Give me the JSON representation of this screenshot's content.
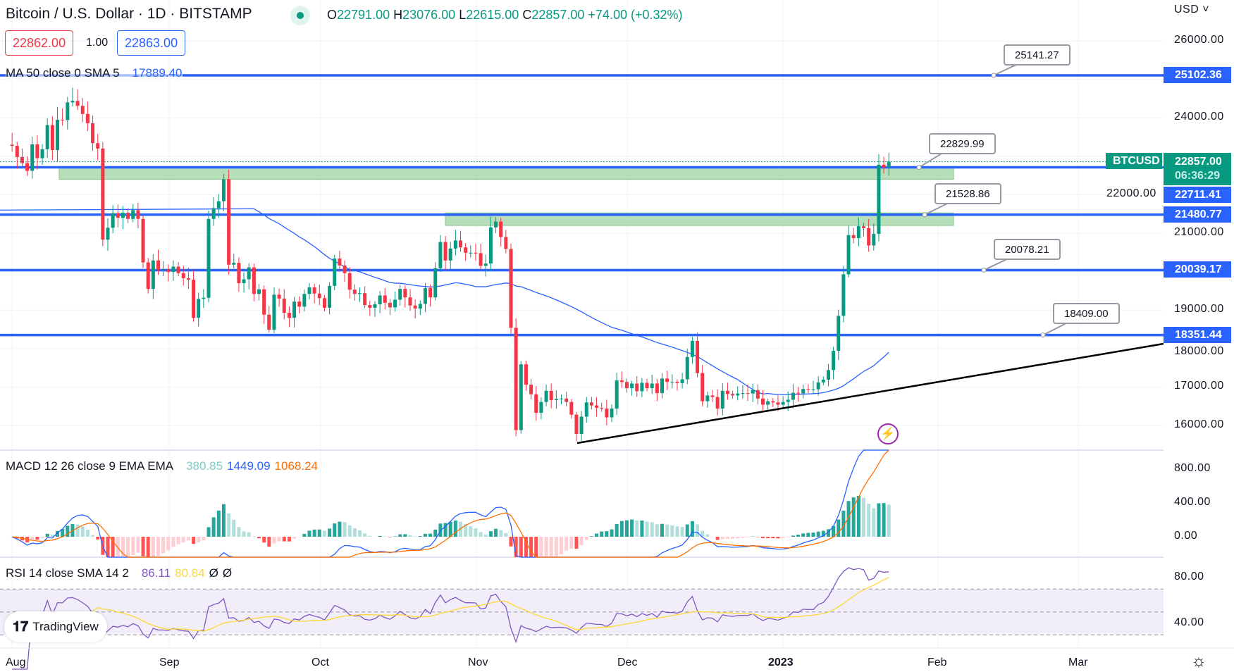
{
  "header": {
    "title": "Bitcoin / U.S. Dollar · 1D · BITSTAMP",
    "open_label": "O",
    "open": "22791.00",
    "high_label": "H",
    "high": "23076.00",
    "low_label": "L",
    "low": "22615.00",
    "close_label": "C",
    "close": "22857.00",
    "change": "+74.00 (+0.32%)"
  },
  "trade": {
    "sell": "22862.00",
    "qty": "1.00",
    "buy": "22863.00"
  },
  "ma_legend": {
    "label": "MA 50 close 0 SMA 5",
    "value": "17889.40"
  },
  "macd_legend": {
    "label": "MACD 12 26 close 9 EMA EMA",
    "hist": "380.85",
    "macd": "1449.09",
    "signal": "1068.24"
  },
  "rsi_legend": {
    "label": "RSI 14 close SMA 14 2",
    "rsi": "86.11",
    "sma": "80.84",
    "a": "Ø",
    "b": "Ø"
  },
  "currency": "USD",
  "price_axis": [
    "26000.00",
    "24000.00",
    "22000.00",
    "21000.00",
    "19000.00",
    "18000.00",
    "17000.00",
    "16000.00"
  ],
  "macd_axis": [
    "800.00",
    "400.00",
    "0.00"
  ],
  "rsi_axis": [
    "80.00",
    "40.00"
  ],
  "time_axis": [
    "Aug",
    "Sep",
    "Oct",
    "Nov",
    "Dec",
    "2023",
    "Feb",
    "Mar"
  ],
  "symbol_tag": "BTCUSD",
  "last_price": "22857.00",
  "countdown": "06:36:29",
  "levels": [
    {
      "price": "25102.36",
      "callout": "25141.27"
    },
    {
      "price": "22711.41",
      "callout": "22829.99"
    },
    {
      "price": "21480.77",
      "callout": "21528.86"
    },
    {
      "price": "20039.17",
      "callout": "20078.21"
    },
    {
      "price": "18351.44",
      "callout": "18409.00"
    }
  ],
  "brand": "TradingView",
  "colors": {
    "up": "#089981",
    "down": "#f23645",
    "level": "#2962ff",
    "ma": "#2962ff",
    "signal": "#ff6d00",
    "rsi": "#7e57c2",
    "rsi_sma": "#fdd835"
  },
  "chart_data": {
    "type": "candlestick",
    "start": "2022-07-31",
    "interval": "1D",
    "closes": [
      23300,
      23270,
      22980,
      22820,
      22620,
      23310,
      22950,
      23180,
      23810,
      23160,
      23950,
      23940,
      24400,
      24440,
      24310,
      24100,
      23860,
      23340,
      23200,
      20830,
      21140,
      21520,
      21400,
      21530,
      21370,
      21600,
      21370,
      20240,
      19550,
      20290,
      20050,
      20050,
      19990,
      20130,
      19960,
      19830,
      19790,
      18800,
      19290,
      19320,
      21370,
      21650,
      21830,
      22400,
      20180,
      20230,
      19700,
      19800,
      20110,
      19420,
      19540,
      18880,
      18490,
      19400,
      19300,
      18930,
      18800,
      19220,
      19090,
      19420,
      19590,
      19430,
      19310,
      19060,
      19630,
      20340,
      20160,
      19960,
      19530,
      19420,
      19440,
      19130,
      19060,
      19150,
      19380,
      19190,
      19070,
      19270,
      19550,
      19330,
      19120,
      19040,
      19160,
      19570,
      19330,
      20090,
      20770,
      20290,
      20600,
      20810,
      20630,
      20490,
      20490,
      20480,
      20150,
      20210,
      21150,
      21300,
      20900,
      20590,
      18540,
      15880,
      17590,
      17060,
      16810,
      16330,
      16610,
      16900,
      16660,
      16690,
      16700,
      16610,
      16280,
      15780,
      16230,
      16600,
      16520,
      16460,
      16440,
      16210,
      16440,
      17170,
      17130,
      16970,
      17090,
      16890,
      17110,
      16970,
      17090,
      16840,
      17220,
      17130,
      17130,
      17100,
      17200,
      17780,
      18200,
      17360,
      16630,
      16780,
      16740,
      16440,
      16900,
      16820,
      16780,
      16830,
      16840,
      16830,
      16920,
      16700,
      16540,
      16630,
      16600,
      16540,
      16610,
      16670,
      16850,
      16830,
      16950,
      16940,
      16940,
      17120,
      17190,
      17440,
      17940,
      18850,
      19930,
      20950,
      20870,
      21180,
      21130,
      20680,
      20980,
      22780,
      22710,
      22857
    ],
    "zones": [
      [
        22400,
        22711
      ],
      [
        21200,
        21528
      ]
    ],
    "trendline": [
      [
        "2022-11-21",
        15480
      ],
      [
        "2023-02-28",
        18100
      ]
    ],
    "ylim": [
      15500,
      26500
    ]
  }
}
